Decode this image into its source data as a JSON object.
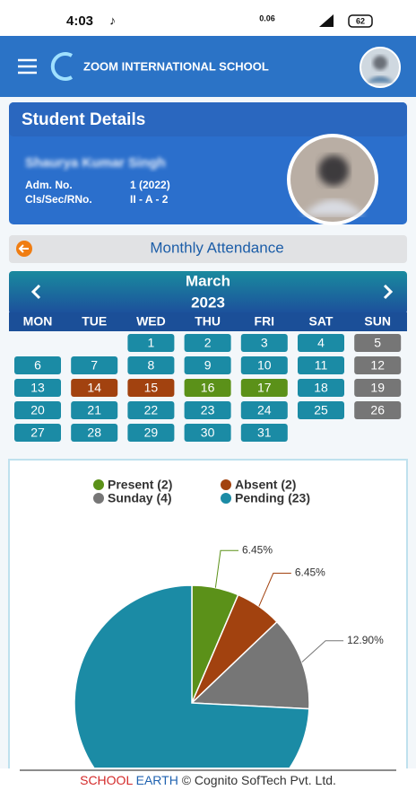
{
  "status_bar": {
    "time": "4:03",
    "speed": "0.06",
    "battery": "62"
  },
  "header": {
    "title": "ZOOM INTERNATIONAL SCHOOL"
  },
  "student": {
    "title": "Student Details",
    "name": "Shaurya Kumar Singh",
    "adm_label": "Adm. No.",
    "adm_value": "1 (2022)",
    "class_label": "Cls/Sec/RNo.",
    "class_value": "II - A - 2"
  },
  "attendance": {
    "title": "Monthly Attendance"
  },
  "calendar": {
    "month": "March",
    "year": "2023",
    "weekdays": [
      "MON",
      "TUE",
      "WED",
      "THU",
      "FRI",
      "SAT",
      "SUN"
    ],
    "status_colors": {
      "pending": "#1b8ba5",
      "absent": "#a2420f",
      "present": "#5b9119",
      "sunday": "#767676"
    },
    "weeks": [
      [
        null,
        null,
        {
          "day": 1,
          "status": "pending"
        },
        {
          "day": 2,
          "status": "pending"
        },
        {
          "day": 3,
          "status": "pending"
        },
        {
          "day": 4,
          "status": "pending"
        },
        {
          "day": 5,
          "status": "sunday"
        }
      ],
      [
        {
          "day": 6,
          "status": "pending"
        },
        {
          "day": 7,
          "status": "pending"
        },
        {
          "day": 8,
          "status": "pending"
        },
        {
          "day": 9,
          "status": "pending"
        },
        {
          "day": 10,
          "status": "pending"
        },
        {
          "day": 11,
          "status": "pending"
        },
        {
          "day": 12,
          "status": "sunday"
        }
      ],
      [
        {
          "day": 13,
          "status": "pending"
        },
        {
          "day": 14,
          "status": "absent"
        },
        {
          "day": 15,
          "status": "absent"
        },
        {
          "day": 16,
          "status": "present"
        },
        {
          "day": 17,
          "status": "present"
        },
        {
          "day": 18,
          "status": "pending"
        },
        {
          "day": 19,
          "status": "sunday"
        }
      ],
      [
        {
          "day": 20,
          "status": "pending"
        },
        {
          "day": 21,
          "status": "pending"
        },
        {
          "day": 22,
          "status": "pending"
        },
        {
          "day": 23,
          "status": "pending"
        },
        {
          "day": 24,
          "status": "pending"
        },
        {
          "day": 25,
          "status": "pending"
        },
        {
          "day": 26,
          "status": "sunday"
        }
      ],
      [
        {
          "day": 27,
          "status": "pending"
        },
        {
          "day": 28,
          "status": "pending"
        },
        {
          "day": 29,
          "status": "pending"
        },
        {
          "day": 30,
          "status": "pending"
        },
        {
          "day": 31,
          "status": "pending"
        },
        null,
        null
      ]
    ]
  },
  "chart_data": {
    "type": "pie",
    "categories": [
      "Present (2)",
      "Absent (2)",
      "Sunday (4)",
      "Pending (23)"
    ],
    "values": [
      6.45,
      6.45,
      12.9,
      74.19
    ],
    "value_labels": [
      "6.45%",
      "6.45%",
      "12.90%",
      null
    ],
    "colors": [
      "#5b9119",
      "#a2420f",
      "#767676",
      "#1b8ba5"
    ]
  },
  "footer": {
    "school": "SCHOOL",
    "earth": "EARTH",
    "rest": "© Cognito SofTech Pvt. Ltd."
  }
}
